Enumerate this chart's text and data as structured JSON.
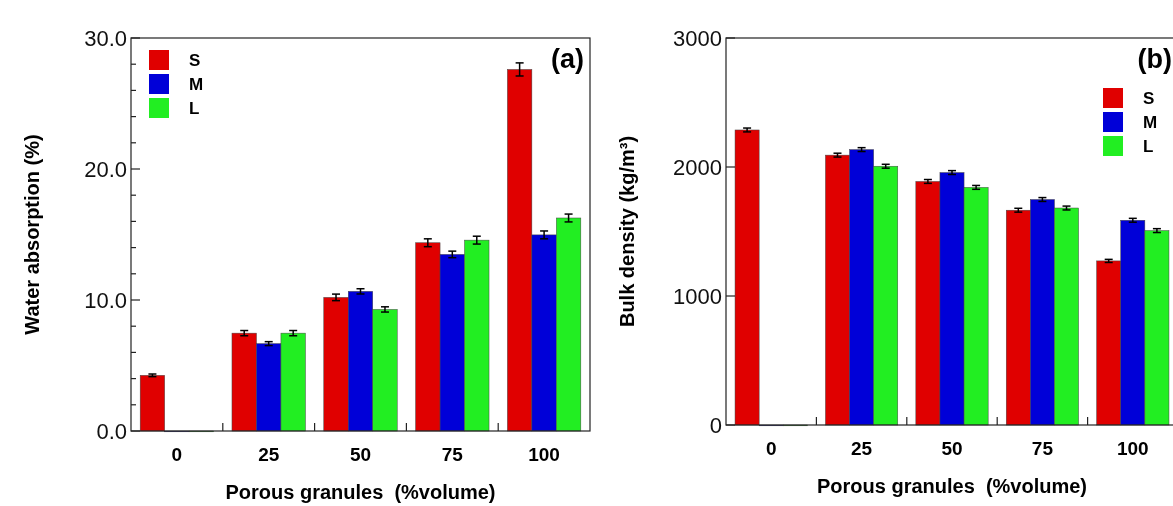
{
  "chart_data": [
    {
      "type": "bar",
      "xlabel": "Porous granules  (%volume)",
      "ylabel": "Water absorption (%)",
      "categories": [
        "0",
        "25",
        "50",
        "75",
        "100"
      ],
      "series": [
        {
          "name": "S",
          "color": "#e00000",
          "values": [
            4.25,
            7.47,
            10.2,
            14.37,
            27.6
          ],
          "errors": [
            0.1,
            0.2,
            0.25,
            0.3,
            0.5
          ]
        },
        {
          "name": "M",
          "color": "#0000d8",
          "values": [
            0,
            6.67,
            10.66,
            13.48,
            14.97
          ],
          "errors": [
            null,
            0.15,
            0.2,
            0.25,
            0.3
          ]
        },
        {
          "name": "L",
          "color": "#22ee22",
          "values": [
            0,
            7.47,
            9.28,
            14.57,
            16.26
          ],
          "errors": [
            null,
            0.2,
            0.2,
            0.3,
            0.3
          ]
        }
      ],
      "ylim": [
        0,
        30
      ],
      "yticks": [
        {
          "value": 0,
          "label": "0.0"
        },
        {
          "value": 2,
          "label": null
        },
        {
          "value": 4,
          "label": null
        },
        {
          "value": 6,
          "label": null
        },
        {
          "value": 8,
          "label": null
        },
        {
          "value": 10,
          "label": "10.0"
        },
        {
          "value": 12,
          "label": null
        },
        {
          "value": 14,
          "label": null
        },
        {
          "value": 16,
          "label": null
        },
        {
          "value": 18,
          "label": null
        },
        {
          "value": 20,
          "label": "20.0"
        },
        {
          "value": 22,
          "label": null
        },
        {
          "value": 24,
          "label": null
        },
        {
          "value": 26,
          "label": null
        },
        {
          "value": 28,
          "label": null
        },
        {
          "value": 30,
          "label": "30.0"
        }
      ],
      "legend": "top left",
      "grid": false,
      "annotations": [
        "(a)"
      ]
    },
    {
      "type": "bar",
      "xlabel": "Porous granules  (%volume)",
      "ylabel": "Bulk density (kg/m³)",
      "categories": [
        "0",
        "25",
        "50",
        "75",
        "100"
      ],
      "series": [
        {
          "name": "S",
          "color": "#e00000",
          "values": [
            2287,
            2092,
            1888,
            1665,
            1272
          ],
          "errors": [
            15,
            15,
            15,
            15,
            12
          ]
        },
        {
          "name": "M",
          "color": "#0000d8",
          "values": [
            0,
            2135,
            1957,
            1748,
            1587
          ],
          "errors": [
            null,
            15,
            15,
            15,
            15
          ]
        },
        {
          "name": "L",
          "color": "#22ee22",
          "values": [
            0,
            2006,
            1842,
            1682,
            1507
          ],
          "errors": [
            null,
            15,
            15,
            15,
            15
          ]
        }
      ],
      "ylim": [
        0,
        3000
      ],
      "yticks": [
        0,
        1000,
        2000,
        3000
      ],
      "legend": "top right",
      "grid": false,
      "annotations": [
        "(b)"
      ]
    }
  ]
}
